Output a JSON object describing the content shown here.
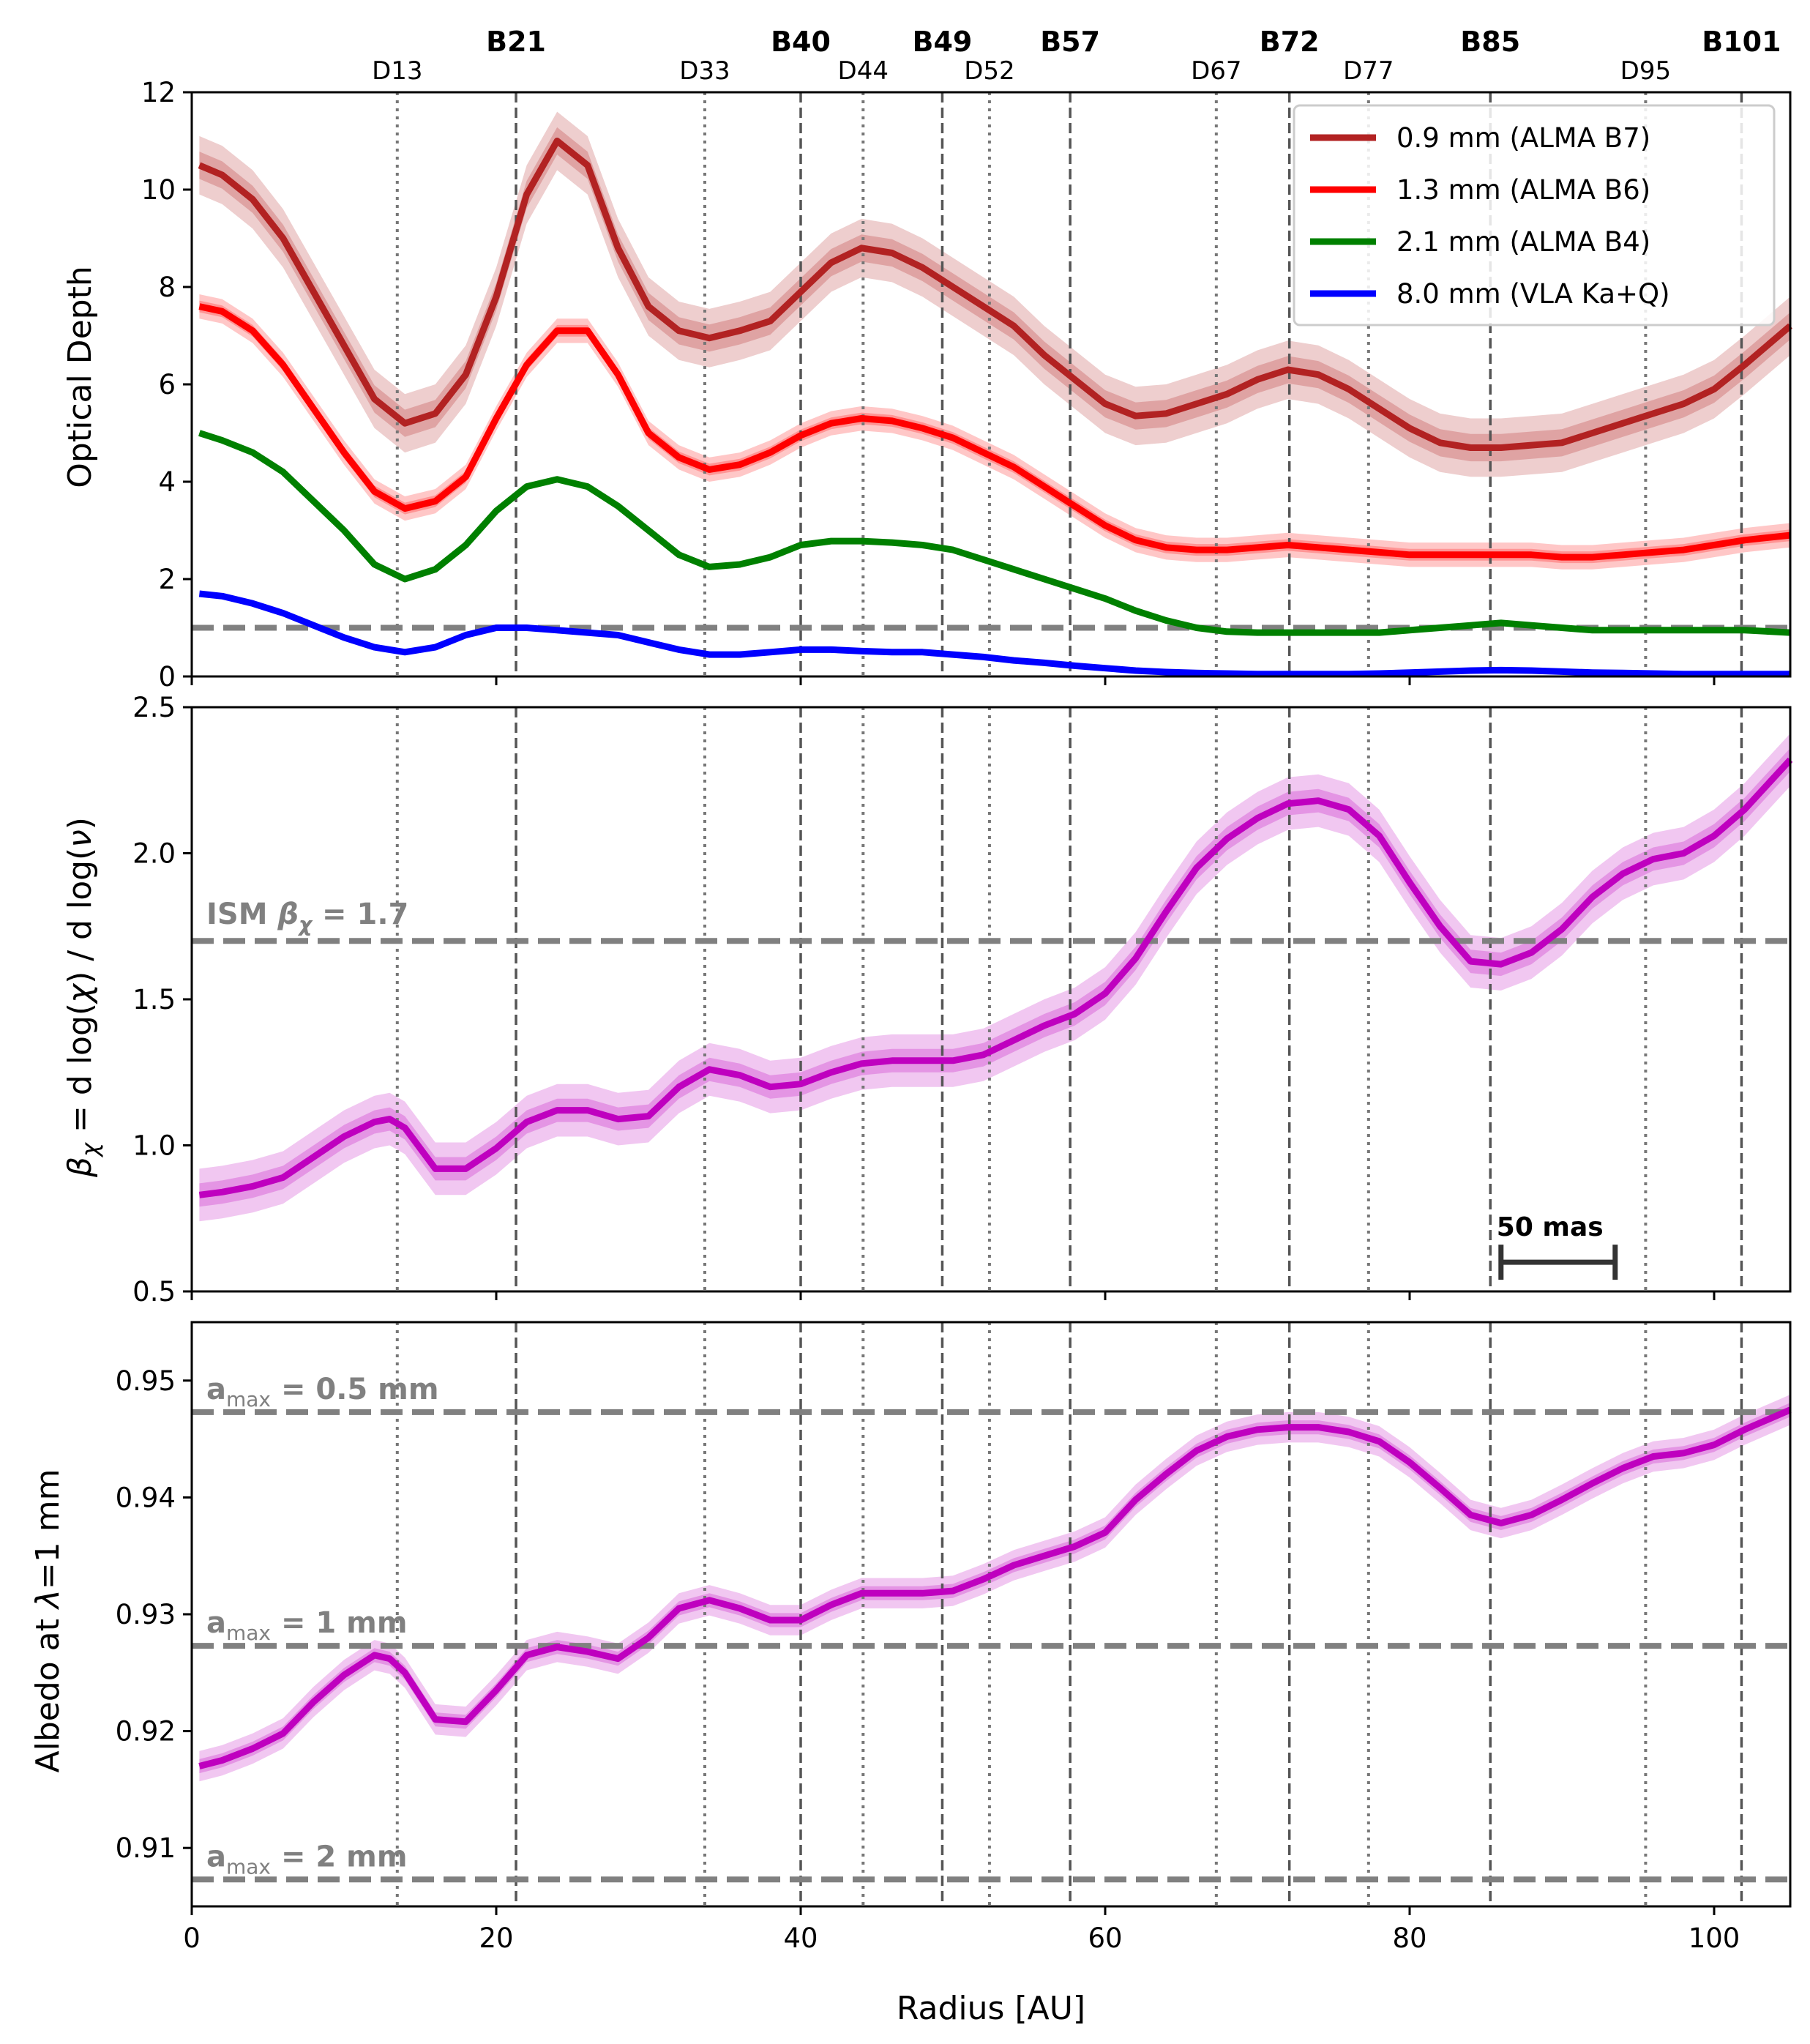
{
  "chart_data": [
    {
      "type": "line",
      "ylabel": "Optical Depth",
      "xlim": [
        0,
        105
      ],
      "ylim": [
        0,
        12
      ],
      "yticks": [
        0,
        2,
        4,
        6,
        8,
        10,
        12
      ],
      "xticks": [
        0,
        20,
        40,
        60,
        80,
        100
      ],
      "grid": false,
      "legend_position": "top-right",
      "reference_lines": [
        {
          "y": 1.0,
          "style": "dashed",
          "color": "#808080"
        }
      ],
      "series": [
        {
          "name": "0.9 mm (ALMA B7)",
          "color": "#b22222",
          "x": [
            0.5,
            2,
            4,
            6,
            8,
            10,
            12,
            14,
            16,
            18,
            20,
            22,
            24,
            26,
            28,
            30,
            32,
            34,
            36,
            38,
            40,
            42,
            44,
            46,
            48,
            50,
            52,
            54,
            56,
            58,
            60,
            62,
            64,
            66,
            68,
            70,
            72,
            74,
            76,
            78,
            80,
            82,
            84,
            86,
            88,
            90,
            92,
            94,
            96,
            98,
            100,
            102,
            105
          ],
          "y": [
            10.5,
            10.3,
            9.8,
            9.0,
            7.9,
            6.8,
            5.7,
            5.2,
            5.4,
            6.2,
            7.8,
            9.9,
            11.0,
            10.5,
            8.8,
            7.6,
            7.1,
            6.95,
            7.1,
            7.3,
            7.9,
            8.5,
            8.8,
            8.7,
            8.4,
            8.0,
            7.6,
            7.2,
            6.6,
            6.1,
            5.6,
            5.35,
            5.4,
            5.6,
            5.8,
            6.1,
            6.3,
            6.2,
            5.9,
            5.5,
            5.1,
            4.8,
            4.7,
            4.7,
            4.75,
            4.8,
            5.0,
            5.2,
            5.4,
            5.6,
            5.9,
            6.4,
            7.2
          ],
          "band_inner": 0.28,
          "band_outer": 0.6
        },
        {
          "name": "1.3 mm (ALMA B6)",
          "color": "#ff0000",
          "x": [
            0.5,
            2,
            4,
            6,
            8,
            10,
            12,
            14,
            16,
            18,
            20,
            22,
            24,
            26,
            28,
            30,
            32,
            34,
            36,
            38,
            40,
            42,
            44,
            46,
            48,
            50,
            52,
            54,
            56,
            58,
            60,
            62,
            64,
            66,
            68,
            70,
            72,
            74,
            76,
            78,
            80,
            82,
            84,
            86,
            88,
            90,
            92,
            94,
            96,
            98,
            100,
            102,
            105
          ],
          "y": [
            7.6,
            7.5,
            7.1,
            6.4,
            5.5,
            4.6,
            3.8,
            3.45,
            3.6,
            4.1,
            5.3,
            6.4,
            7.1,
            7.1,
            6.2,
            5.0,
            4.5,
            4.25,
            4.35,
            4.6,
            4.95,
            5.2,
            5.3,
            5.25,
            5.1,
            4.9,
            4.6,
            4.3,
            3.9,
            3.5,
            3.1,
            2.8,
            2.65,
            2.6,
            2.6,
            2.65,
            2.7,
            2.65,
            2.6,
            2.55,
            2.5,
            2.5,
            2.5,
            2.5,
            2.5,
            2.45,
            2.45,
            2.5,
            2.55,
            2.6,
            2.7,
            2.8,
            2.9
          ],
          "band_inner": 0.12,
          "band_outer": 0.25
        },
        {
          "name": "2.1 mm (ALMA B4)",
          "color": "#008000",
          "x": [
            0.5,
            2,
            4,
            6,
            8,
            10,
            12,
            14,
            16,
            18,
            20,
            22,
            24,
            26,
            28,
            30,
            32,
            34,
            36,
            38,
            40,
            42,
            44,
            46,
            48,
            50,
            52,
            54,
            56,
            58,
            60,
            62,
            64,
            66,
            68,
            70,
            72,
            74,
            76,
            78,
            80,
            82,
            84,
            86,
            88,
            90,
            92,
            94,
            96,
            98,
            100,
            102,
            105
          ],
          "y": [
            5.0,
            4.85,
            4.6,
            4.2,
            3.6,
            3.0,
            2.3,
            2.0,
            2.2,
            2.7,
            3.4,
            3.9,
            4.05,
            3.9,
            3.5,
            3.0,
            2.5,
            2.25,
            2.3,
            2.45,
            2.7,
            2.78,
            2.78,
            2.75,
            2.7,
            2.6,
            2.4,
            2.2,
            2.0,
            1.8,
            1.6,
            1.35,
            1.15,
            1.0,
            0.92,
            0.9,
            0.9,
            0.9,
            0.9,
            0.9,
            0.95,
            1.0,
            1.05,
            1.1,
            1.05,
            1.0,
            0.95,
            0.95,
            0.95,
            0.95,
            0.95,
            0.95,
            0.9
          ],
          "band_inner": 0.0,
          "band_outer": 0.0
        },
        {
          "name": "8.0 mm (VLA Ka+Q)",
          "color": "#0000ff",
          "x": [
            0.5,
            2,
            4,
            6,
            8,
            10,
            12,
            14,
            16,
            18,
            20,
            22,
            24,
            26,
            28,
            30,
            32,
            34,
            36,
            38,
            40,
            42,
            44,
            46,
            48,
            50,
            52,
            54,
            56,
            58,
            60,
            62,
            64,
            66,
            68,
            70,
            72,
            74,
            76,
            78,
            80,
            82,
            84,
            86,
            88,
            90,
            92,
            94,
            96,
            98,
            100,
            102,
            105
          ],
          "y": [
            1.7,
            1.65,
            1.5,
            1.3,
            1.05,
            0.8,
            0.6,
            0.5,
            0.6,
            0.85,
            1.0,
            1.0,
            0.95,
            0.9,
            0.85,
            0.7,
            0.55,
            0.45,
            0.45,
            0.5,
            0.55,
            0.55,
            0.52,
            0.5,
            0.5,
            0.45,
            0.4,
            0.33,
            0.28,
            0.22,
            0.17,
            0.12,
            0.09,
            0.07,
            0.06,
            0.05,
            0.05,
            0.05,
            0.05,
            0.06,
            0.08,
            0.1,
            0.12,
            0.13,
            0.12,
            0.1,
            0.08,
            0.07,
            0.06,
            0.05,
            0.05,
            0.05,
            0.05
          ],
          "band_inner": 0.0,
          "band_outer": 0.0
        }
      ]
    },
    {
      "type": "line",
      "ylabel_parts": {
        "beta": "β",
        "chi": "χ",
        "rest": " = d log(",
        "chi2": "χ",
        "mid": ") / d log(",
        "nu": "ν",
        "end": ")"
      },
      "xlim": [
        0,
        105
      ],
      "ylim": [
        0.5,
        2.5
      ],
      "yticks": [
        0.5,
        1.0,
        1.5,
        2.0,
        2.5
      ],
      "xticks": [
        0,
        20,
        40,
        60,
        80,
        100
      ],
      "grid": false,
      "reference_lines": [
        {
          "y": 1.7,
          "style": "dashed",
          "color": "#808080"
        }
      ],
      "reference_label": {
        "prefix": "ISM ",
        "beta": "β",
        "chi": "χ",
        "suffix": " = 1.7"
      },
      "series": [
        {
          "name": "",
          "color": "#bf00bf",
          "x": [
            0.5,
            2,
            4,
            6,
            8,
            10,
            12,
            13,
            14,
            16,
            18,
            20,
            22,
            24,
            26,
            28,
            30,
            32,
            34,
            36,
            38,
            40,
            42,
            44,
            46,
            48,
            50,
            52,
            54,
            56,
            58,
            60,
            62,
            64,
            66,
            68,
            70,
            72,
            74,
            76,
            78,
            80,
            82,
            84,
            86,
            88,
            90,
            92,
            94,
            96,
            98,
            100,
            102,
            105
          ],
          "y": [
            0.83,
            0.84,
            0.86,
            0.89,
            0.96,
            1.03,
            1.08,
            1.09,
            1.06,
            0.92,
            0.92,
            0.99,
            1.08,
            1.12,
            1.12,
            1.09,
            1.1,
            1.2,
            1.26,
            1.24,
            1.2,
            1.21,
            1.25,
            1.28,
            1.29,
            1.29,
            1.29,
            1.31,
            1.36,
            1.41,
            1.45,
            1.52,
            1.64,
            1.8,
            1.95,
            2.05,
            2.12,
            2.17,
            2.18,
            2.15,
            2.06,
            1.9,
            1.75,
            1.63,
            1.62,
            1.66,
            1.74,
            1.85,
            1.93,
            1.98,
            2.0,
            2.06,
            2.15,
            2.32
          ],
          "band_inner": 0.04,
          "band_outer": 0.09
        }
      ],
      "scalebar": {
        "label": "50 mas",
        "x_start": 86,
        "x_end": 93.5,
        "y": 0.6
      }
    },
    {
      "type": "line",
      "ylabel_parts": {
        "pre": "Albedo at ",
        "lambda": "λ",
        "post": "=1 mm"
      },
      "xlabel": "Radius [AU]",
      "xlim": [
        0,
        105
      ],
      "ylim": [
        0.905,
        0.955
      ],
      "yticks": [
        0.91,
        0.92,
        0.93,
        0.94,
        0.95
      ],
      "xticks": [
        0,
        20,
        40,
        60,
        80,
        100
      ],
      "grid": false,
      "reference_lines": [
        {
          "y": 0.9473,
          "style": "dashed",
          "color": "#808080",
          "label_a": "a",
          "label_sub": "max",
          "label_rest": " = 0.5 mm"
        },
        {
          "y": 0.9273,
          "style": "dashed",
          "color": "#808080",
          "label_a": "a",
          "label_sub": "max",
          "label_rest": " = 1 mm"
        },
        {
          "y": 0.9073,
          "style": "dashed",
          "color": "#808080",
          "label_a": "a",
          "label_sub": "max",
          "label_rest": " = 2 mm"
        }
      ],
      "series": [
        {
          "name": "",
          "color": "#bf00bf",
          "x": [
            0.5,
            2,
            4,
            6,
            8,
            10,
            12,
            13,
            14,
            16,
            18,
            20,
            22,
            24,
            26,
            28,
            30,
            32,
            34,
            36,
            38,
            40,
            42,
            44,
            46,
            48,
            50,
            52,
            54,
            56,
            58,
            60,
            62,
            64,
            66,
            68,
            70,
            72,
            74,
            76,
            78,
            80,
            82,
            84,
            86,
            88,
            90,
            92,
            94,
            96,
            98,
            100,
            102,
            105
          ],
          "y": [
            0.917,
            0.9175,
            0.9185,
            0.9198,
            0.9225,
            0.9248,
            0.9265,
            0.9262,
            0.925,
            0.921,
            0.9208,
            0.9235,
            0.9265,
            0.9272,
            0.9268,
            0.9262,
            0.928,
            0.9305,
            0.9312,
            0.9305,
            0.9295,
            0.9295,
            0.9308,
            0.9318,
            0.9318,
            0.9318,
            0.932,
            0.933,
            0.9342,
            0.935,
            0.9358,
            0.937,
            0.9398,
            0.942,
            0.944,
            0.9452,
            0.9458,
            0.946,
            0.946,
            0.9456,
            0.9448,
            0.943,
            0.9408,
            0.9385,
            0.9378,
            0.9385,
            0.9398,
            0.9412,
            0.9425,
            0.9435,
            0.9438,
            0.9445,
            0.9458,
            0.9475
          ],
          "band_inner": 0.0006,
          "band_outer": 0.0013
        }
      ]
    }
  ],
  "ring_markers": [
    {
      "label": "D13",
      "r": 13.5,
      "kind": "gap"
    },
    {
      "label": "B21",
      "r": 21.3,
      "kind": "ring"
    },
    {
      "label": "D33",
      "r": 33.7,
      "kind": "gap"
    },
    {
      "label": "B40",
      "r": 40.0,
      "kind": "ring"
    },
    {
      "label": "D44",
      "r": 44.1,
      "kind": "gap"
    },
    {
      "label": "B49",
      "r": 49.3,
      "kind": "ring"
    },
    {
      "label": "D52",
      "r": 52.4,
      "kind": "gap"
    },
    {
      "label": "B57",
      "r": 57.7,
      "kind": "ring"
    },
    {
      "label": "D67",
      "r": 67.3,
      "kind": "gap"
    },
    {
      "label": "B72",
      "r": 72.1,
      "kind": "ring"
    },
    {
      "label": "D77",
      "r": 77.3,
      "kind": "gap"
    },
    {
      "label": "B85",
      "r": 85.3,
      "kind": "ring"
    },
    {
      "label": "D95",
      "r": 95.5,
      "kind": "gap"
    },
    {
      "label": "B101",
      "r": 101.8,
      "kind": "ring"
    }
  ]
}
